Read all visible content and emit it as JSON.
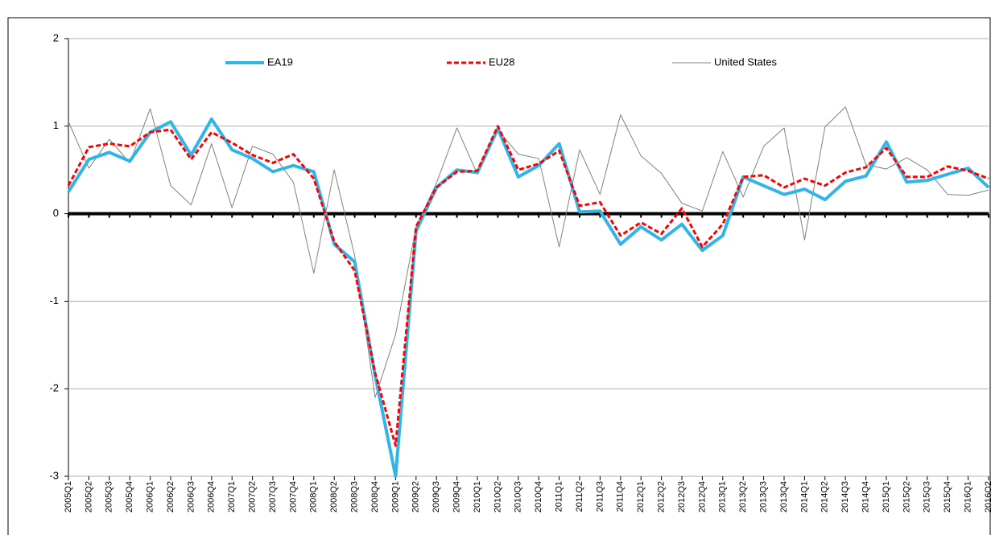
{
  "chart_data": {
    "type": "line",
    "categories": [
      "2005Q1",
      "2005Q2",
      "2005Q3",
      "2005Q4",
      "2006Q1",
      "2006Q2",
      "2006Q3",
      "2006Q4",
      "2007Q1",
      "2007Q2",
      "2007Q3",
      "2007Q4",
      "2008Q1",
      "2008Q2",
      "2008Q3",
      "2008Q4",
      "2009Q1",
      "2009Q2",
      "2009Q3",
      "2009Q4",
      "2010Q1",
      "2010Q2",
      "2010Q3",
      "2010Q4",
      "2011Q1",
      "2011Q2",
      "2011Q3",
      "2011Q4",
      "2012Q1",
      "2012Q2",
      "2012Q3",
      "2012Q4",
      "2013Q1",
      "2013Q2",
      "2013Q3",
      "2013Q4",
      "2014Q1",
      "2014Q2",
      "2014Q3",
      "2014Q4",
      "2015Q1",
      "2015Q2",
      "2015Q3",
      "2015Q4",
      "2016Q1",
      "2016Q2"
    ],
    "series": [
      {
        "name": "EA19",
        "color": "#33b4e6",
        "values": [
          0.25,
          0.62,
          0.7,
          0.6,
          0.93,
          1.05,
          0.67,
          1.08,
          0.73,
          0.63,
          0.48,
          0.55,
          0.48,
          -0.35,
          -0.55,
          -1.85,
          -3.0,
          -0.2,
          0.3,
          0.5,
          0.47,
          0.97,
          0.42,
          0.55,
          0.8,
          0.02,
          0.03,
          -0.35,
          -0.15,
          -0.3,
          -0.12,
          -0.42,
          -0.25,
          0.42,
          0.32,
          0.22,
          0.28,
          0.16,
          0.37,
          0.43,
          0.82,
          0.36,
          0.38,
          0.45,
          0.52,
          0.3
        ]
      },
      {
        "name": "EU28",
        "color": "#ff0000",
        "values": [
          0.32,
          0.76,
          0.8,
          0.77,
          0.93,
          0.96,
          0.62,
          0.93,
          0.81,
          0.67,
          0.58,
          0.68,
          0.4,
          -0.32,
          -0.65,
          -1.82,
          -2.65,
          -0.15,
          0.3,
          0.48,
          0.49,
          1.0,
          0.5,
          0.57,
          0.72,
          0.09,
          0.13,
          -0.25,
          -0.1,
          -0.23,
          0.06,
          -0.38,
          -0.12,
          0.42,
          0.44,
          0.3,
          0.4,
          0.32,
          0.47,
          0.53,
          0.75,
          0.42,
          0.42,
          0.54,
          0.49,
          0.4
        ]
      },
      {
        "name": "United States",
        "color": "#808080",
        "values": [
          1.05,
          0.52,
          0.85,
          0.58,
          1.2,
          0.32,
          0.1,
          0.8,
          0.07,
          0.77,
          0.68,
          0.36,
          -0.68,
          0.5,
          -0.48,
          -2.1,
          -1.38,
          -0.15,
          0.35,
          0.98,
          0.45,
          0.96,
          0.68,
          0.63,
          -0.38,
          0.73,
          0.22,
          1.13,
          0.66,
          0.46,
          0.12,
          0.03,
          0.71,
          0.19,
          0.77,
          0.98,
          -0.3,
          0.99,
          1.22,
          0.56,
          0.51,
          0.64,
          0.5,
          0.22,
          0.21,
          0.27
        ]
      }
    ],
    "ylim": [
      -3,
      2
    ],
    "yticks": [
      -3,
      -2,
      -1,
      0,
      1,
      2
    ],
    "grid": true,
    "legend": "top"
  }
}
